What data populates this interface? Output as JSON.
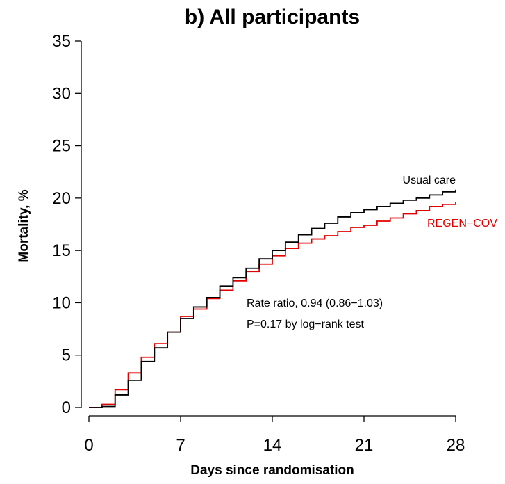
{
  "chart_data": {
    "type": "line",
    "title": "b) All participants",
    "xlabel": "Days since randomisation",
    "ylabel": "Mortality, %",
    "xlim": [
      0,
      28
    ],
    "ylim": [
      0,
      35
    ],
    "x_ticks": [
      "0",
      "7",
      "14",
      "21",
      "28"
    ],
    "y_ticks": [
      "0",
      "5",
      "10",
      "15",
      "20",
      "25",
      "30",
      "35"
    ],
    "series": [
      {
        "name": "Usual care",
        "color": "#000000",
        "step": true,
        "x": [
          1,
          2,
          3,
          4,
          5,
          6,
          7,
          8,
          9,
          10,
          11,
          12,
          13,
          14,
          15,
          16,
          17,
          18,
          19,
          20,
          21,
          22,
          23,
          24,
          25,
          26,
          27,
          28
        ],
        "y": [
          0.1,
          1.2,
          2.6,
          4.4,
          5.7,
          7.2,
          8.5,
          9.6,
          10.5,
          11.6,
          12.4,
          13.3,
          14.2,
          15.0,
          15.8,
          16.5,
          17.1,
          17.6,
          18.2,
          18.6,
          18.9,
          19.2,
          19.5,
          19.8,
          20.0,
          20.3,
          20.6,
          20.8
        ]
      },
      {
        "name": "REGEN−COV",
        "color": "#e00000",
        "step": true,
        "x": [
          1,
          2,
          3,
          4,
          5,
          6,
          7,
          8,
          9,
          10,
          11,
          12,
          13,
          14,
          15,
          16,
          17,
          18,
          19,
          20,
          21,
          22,
          23,
          24,
          25,
          26,
          27,
          28
        ],
        "y": [
          0.3,
          1.7,
          3.3,
          4.8,
          6.1,
          7.2,
          8.7,
          9.4,
          10.4,
          11.2,
          12.1,
          13.0,
          13.7,
          14.5,
          15.2,
          15.7,
          16.1,
          16.4,
          16.8,
          17.2,
          17.4,
          17.8,
          18.1,
          18.5,
          18.8,
          19.2,
          19.4,
          19.6
        ]
      }
    ],
    "annotations": [
      "Rate ratio, 0.94 (0.86−1.03)",
      "P=0.17 by log−rank test"
    ]
  }
}
